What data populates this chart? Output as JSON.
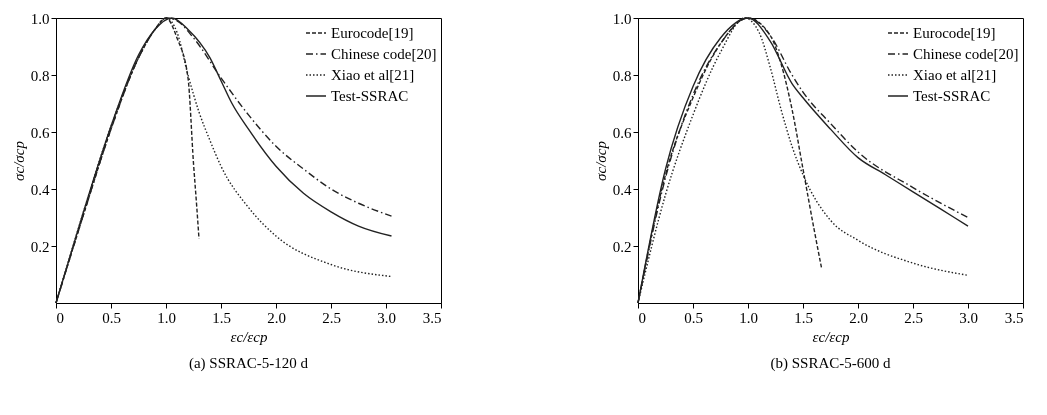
{
  "chart_data": [
    {
      "type": "line",
      "title": "(a) SSRAC-5-120 d",
      "xlabel": "εc/εcp",
      "ylabel": "σc/σcp",
      "xlim": [
        0,
        3.5
      ],
      "ylim": [
        0,
        1.0
      ],
      "xticks": [
        0,
        0.5,
        {
          "value": 1,
          "label": "1.0"
        },
        1.5,
        {
          "value": 2,
          "label": "2.0"
        },
        2.5,
        {
          "value": 3,
          "label": "3.0"
        },
        3.5
      ],
      "yticks": [
        0.2,
        0.4,
        0.6,
        0.8,
        {
          "value": 1,
          "label": "1.0"
        }
      ],
      "grid": false,
      "legend": "top right",
      "series": [
        {
          "name": "Eurocode[19]",
          "color": "#222222",
          "line_style": "dashed",
          "x": [
            0,
            0.25,
            0.5,
            0.75,
            0.9,
            1.0,
            1.1,
            1.2,
            1.25,
            1.28,
            1.3
          ],
          "values": [
            0,
            0.31,
            0.61,
            0.86,
            0.96,
            1.0,
            0.93,
            0.79,
            0.49,
            0.335,
            0.225
          ]
        },
        {
          "name": "Chinese code[20]",
          "color": "#222222",
          "line_style": "dashdot",
          "x": [
            0,
            0.25,
            0.5,
            0.75,
            0.9,
            1.0,
            1.1,
            1.25,
            1.5,
            1.75,
            2.0,
            2.25,
            2.5,
            2.75,
            3.05
          ],
          "values": [
            0,
            0.31,
            0.61,
            0.86,
            0.96,
            1.0,
            0.99,
            0.93,
            0.79,
            0.66,
            0.55,
            0.47,
            0.4,
            0.35,
            0.305
          ]
        },
        {
          "name": "Xiao et al[21]",
          "color": "#222222",
          "line_style": "dotted",
          "x": [
            0,
            0.25,
            0.5,
            0.75,
            0.9,
            1.0,
            1.1,
            1.2,
            1.3,
            1.4,
            1.5,
            1.75,
            2.0,
            2.5,
            3.05
          ],
          "values": [
            0,
            0.32,
            0.62,
            0.86,
            0.96,
            1.0,
            0.95,
            0.8,
            0.67,
            0.57,
            0.48,
            0.335,
            0.235,
            0.135,
            0.093
          ]
        },
        {
          "name": "Test-SSRAC",
          "color": "#222222",
          "line_style": "solid",
          "x": [
            0,
            0.25,
            0.5,
            0.75,
            0.9,
            1.05,
            1.2,
            1.4,
            1.5,
            1.6,
            1.75,
            2.0,
            2.25,
            2.5,
            2.75,
            3.05
          ],
          "values": [
            0,
            0.32,
            0.62,
            0.87,
            0.96,
            1.0,
            0.96,
            0.86,
            0.78,
            0.7,
            0.61,
            0.48,
            0.385,
            0.32,
            0.27,
            0.235
          ]
        }
      ]
    },
    {
      "type": "line",
      "title": "(b) SSRAC-5-600 d",
      "xlabel": "εc/εcp",
      "ylabel": "σc/σcp",
      "xlim": [
        0,
        3.5
      ],
      "ylim": [
        0,
        1.0
      ],
      "xticks": [
        0,
        0.5,
        {
          "value": 1,
          "label": "1.0"
        },
        1.5,
        {
          "value": 2,
          "label": "2.0"
        },
        2.5,
        {
          "value": 3,
          "label": "3.0"
        },
        3.5
      ],
      "yticks": [
        0.2,
        0.4,
        0.6,
        0.8,
        {
          "value": 1,
          "label": "1.0"
        }
      ],
      "grid": false,
      "legend": "top right",
      "series": [
        {
          "name": "Eurocode[19]",
          "color": "#222222",
          "line_style": "dashed",
          "x": [
            0,
            0.25,
            0.5,
            0.75,
            1.0,
            1.2,
            1.3,
            1.4,
            1.5,
            1.6,
            1.67
          ],
          "values": [
            0,
            0.45,
            0.72,
            0.91,
            1.0,
            0.94,
            0.84,
            0.68,
            0.47,
            0.26,
            0.12
          ]
        },
        {
          "name": "Chinese code[20]",
          "color": "#222222",
          "line_style": "dashdot",
          "x": [
            0,
            0.25,
            0.5,
            0.75,
            1.0,
            1.2,
            1.4,
            1.5,
            1.75,
            2.0,
            2.5,
            3.0
          ],
          "values": [
            0,
            0.44,
            0.73,
            0.91,
            1.0,
            0.94,
            0.8,
            0.74,
            0.63,
            0.53,
            0.405,
            0.3
          ]
        },
        {
          "name": "Xiao et al[21]",
          "color": "#222222",
          "line_style": "dotted",
          "x": [
            0,
            0.25,
            0.5,
            0.75,
            0.97,
            1.1,
            1.2,
            1.3,
            1.4,
            1.5,
            1.75,
            2.0,
            2.5,
            3.0
          ],
          "values": [
            0,
            0.38,
            0.66,
            0.88,
            1.0,
            0.95,
            0.83,
            0.68,
            0.55,
            0.45,
            0.29,
            0.22,
            0.14,
            0.097
          ]
        },
        {
          "name": "Test-SSRAC",
          "color": "#222222",
          "line_style": "solid",
          "x": [
            0,
            0.25,
            0.5,
            0.75,
            1.0,
            1.2,
            1.4,
            1.5,
            1.75,
            2.0,
            2.25,
            2.5,
            2.75,
            3.0
          ],
          "values": [
            0,
            0.47,
            0.76,
            0.93,
            1.0,
            0.92,
            0.77,
            0.72,
            0.61,
            0.51,
            0.45,
            0.39,
            0.33,
            0.27
          ]
        }
      ]
    }
  ]
}
